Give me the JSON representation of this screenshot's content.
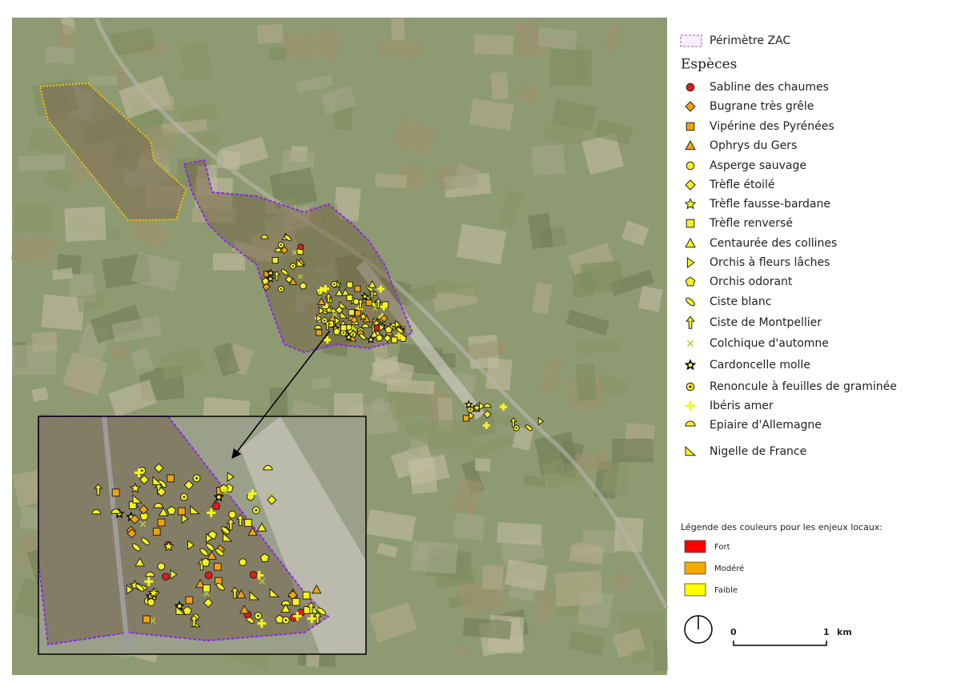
{
  "legend": {
    "zac": "Périmètre ZAC",
    "species_title": "Espèces",
    "species": [
      {
        "name": "Sabline des chaumes",
        "symbol": "circle",
        "color": "#e31a1c"
      },
      {
        "name": "Bugrane très grêle",
        "symbol": "diamond",
        "color": "#f0a30a"
      },
      {
        "name": "Vipérine des Pyrénées",
        "symbol": "square",
        "color": "#f0a30a"
      },
      {
        "name": "Ophrys du Gers",
        "symbol": "triangle",
        "color": "#f0a30a"
      },
      {
        "name": "Asperge sauvage",
        "symbol": "circle",
        "color": "#f5f51a"
      },
      {
        "name": "Trèfle étoilé",
        "symbol": "diamond",
        "color": "#f5f51a"
      },
      {
        "name": "Trèfle fausse-bardane",
        "symbol": "star",
        "color": "#f5f51a"
      },
      {
        "name": "Trèfle renversé",
        "symbol": "square",
        "color": "#f5f51a"
      },
      {
        "name": "Centaurée des collines",
        "symbol": "triangle",
        "color": "#f5f51a"
      },
      {
        "name": "Orchis à fleurs lâches",
        "symbol": "rtriangle",
        "color": "#f5f51a"
      },
      {
        "name": "Orchis odorant",
        "symbol": "pentagon",
        "color": "#f5f51a"
      },
      {
        "name": "Ciste blanc",
        "symbol": "ellipse",
        "color": "#f5f51a"
      },
      {
        "name": "Ciste de Montpellier",
        "symbol": "arrow",
        "color": "#f5f51a"
      },
      {
        "name": "Colchique d'automne",
        "symbol": "cross",
        "color": "#b5c93a"
      },
      {
        "name": "Cardoncelle molle",
        "symbol": "blackstar",
        "color": "#f5f51a"
      },
      {
        "name": "Renoncule à feuilles de graminée",
        "symbol": "target",
        "color": "#f5f51a"
      },
      {
        "name": "Ibéris amer",
        "symbol": "plus",
        "color": "#f5f51a"
      },
      {
        "name": "Epiaire d'Allemagne",
        "symbol": "half",
        "color": "#f5f51a"
      },
      {
        "name": "Nigelle de France",
        "symbol": "corner",
        "color": "#f5f51a"
      }
    ],
    "colors_title": "Légende des couleurs pour les enjeux locaux:",
    "colors": [
      {
        "name": "Fort",
        "color": "#ff0000"
      },
      {
        "name": "Modéré",
        "color": "#f5a800"
      },
      {
        "name": "Faible",
        "color": "#ffff00"
      }
    ]
  },
  "scale": {
    "start": "0",
    "end": "1",
    "unit": "km"
  }
}
